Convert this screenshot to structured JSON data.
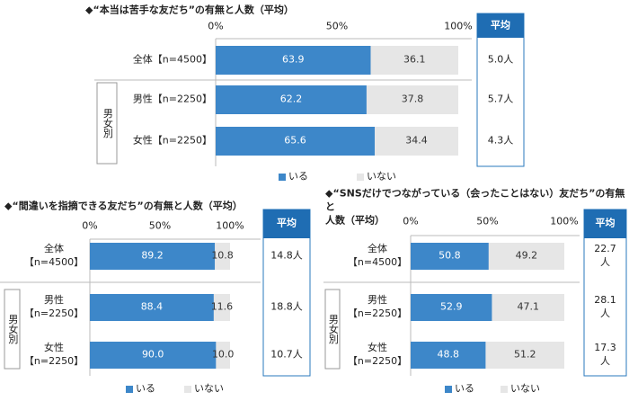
{
  "chart_data": [
    {
      "type": "bar",
      "title": "◆“本当は苦手な友だち”の有無と人数（平均）",
      "categories": [
        "全体【n=4500】",
        "男性【n=2250】",
        "女性【n=2250】"
      ],
      "group_label": "男女別",
      "series": [
        {
          "name": "いる",
          "color": "#3d87c9",
          "values": [
            63.9,
            62.2,
            65.6
          ],
          "value_labels": [
            "63.9",
            "62.2",
            "65.6"
          ]
        },
        {
          "name": "いない",
          "color": "#e6e6e6",
          "values": [
            36.1,
            37.8,
            34.4
          ],
          "value_labels": [
            "36.1",
            "37.8",
            "34.4"
          ]
        }
      ],
      "xlim": [
        0,
        100
      ],
      "xticks": [
        {
          "value": 0,
          "label": "0%"
        },
        {
          "value": 50,
          "label": "50%"
        },
        {
          "value": 100,
          "label": "100%"
        }
      ],
      "averages": {
        "header": "平均",
        "values": [
          "5.0人",
          "5.7人",
          "4.3人"
        ]
      }
    },
    {
      "type": "bar",
      "title": "◆“間違いを指摘できる友だち”の有無と人数（平均）",
      "categories": [
        "全体\n【n=4500】",
        "男性\n【n=2250】",
        "女性\n【n=2250】"
      ],
      "group_label": "男女別",
      "series": [
        {
          "name": "いる",
          "color": "#3d87c9",
          "values": [
            89.2,
            88.4,
            90.0
          ],
          "value_labels": [
            "89.2",
            "88.4",
            "90.0"
          ]
        },
        {
          "name": "いない",
          "color": "#e6e6e6",
          "values": [
            10.8,
            11.6,
            10.0
          ],
          "value_labels": [
            "10.8",
            "11.6",
            "10.0"
          ]
        }
      ],
      "xlim": [
        0,
        100
      ],
      "xticks": [
        {
          "value": 0,
          "label": "0%"
        },
        {
          "value": 50,
          "label": "50%"
        },
        {
          "value": 100,
          "label": "100%"
        }
      ],
      "averages": {
        "header": "平均",
        "values": [
          "14.8人",
          "18.8人",
          "10.7人"
        ]
      }
    },
    {
      "type": "bar",
      "title": "◆“SNSだけでつながっている（会ったことはない）友だち”の有無と\n人数（平均）",
      "categories": [
        "全体\n【n=4500】",
        "男性\n【n=2250】",
        "女性\n【n=2250】"
      ],
      "group_label": "男女別",
      "series": [
        {
          "name": "いる",
          "color": "#3d87c9",
          "values": [
            50.8,
            52.9,
            48.8
          ],
          "value_labels": [
            "50.8",
            "52.9",
            "48.8"
          ]
        },
        {
          "name": "いない",
          "color": "#e6e6e6",
          "values": [
            49.2,
            47.1,
            51.2
          ],
          "value_labels": [
            "49.2",
            "47.1",
            "51.2"
          ]
        }
      ],
      "xlim": [
        0,
        100
      ],
      "xticks": [
        {
          "value": 0,
          "label": "0%"
        },
        {
          "value": 50,
          "label": "50%"
        },
        {
          "value": 100,
          "label": "100%"
        }
      ],
      "averages": {
        "header": "平均",
        "values": [
          "22.7人",
          "28.1人",
          "17.3人"
        ]
      }
    }
  ]
}
